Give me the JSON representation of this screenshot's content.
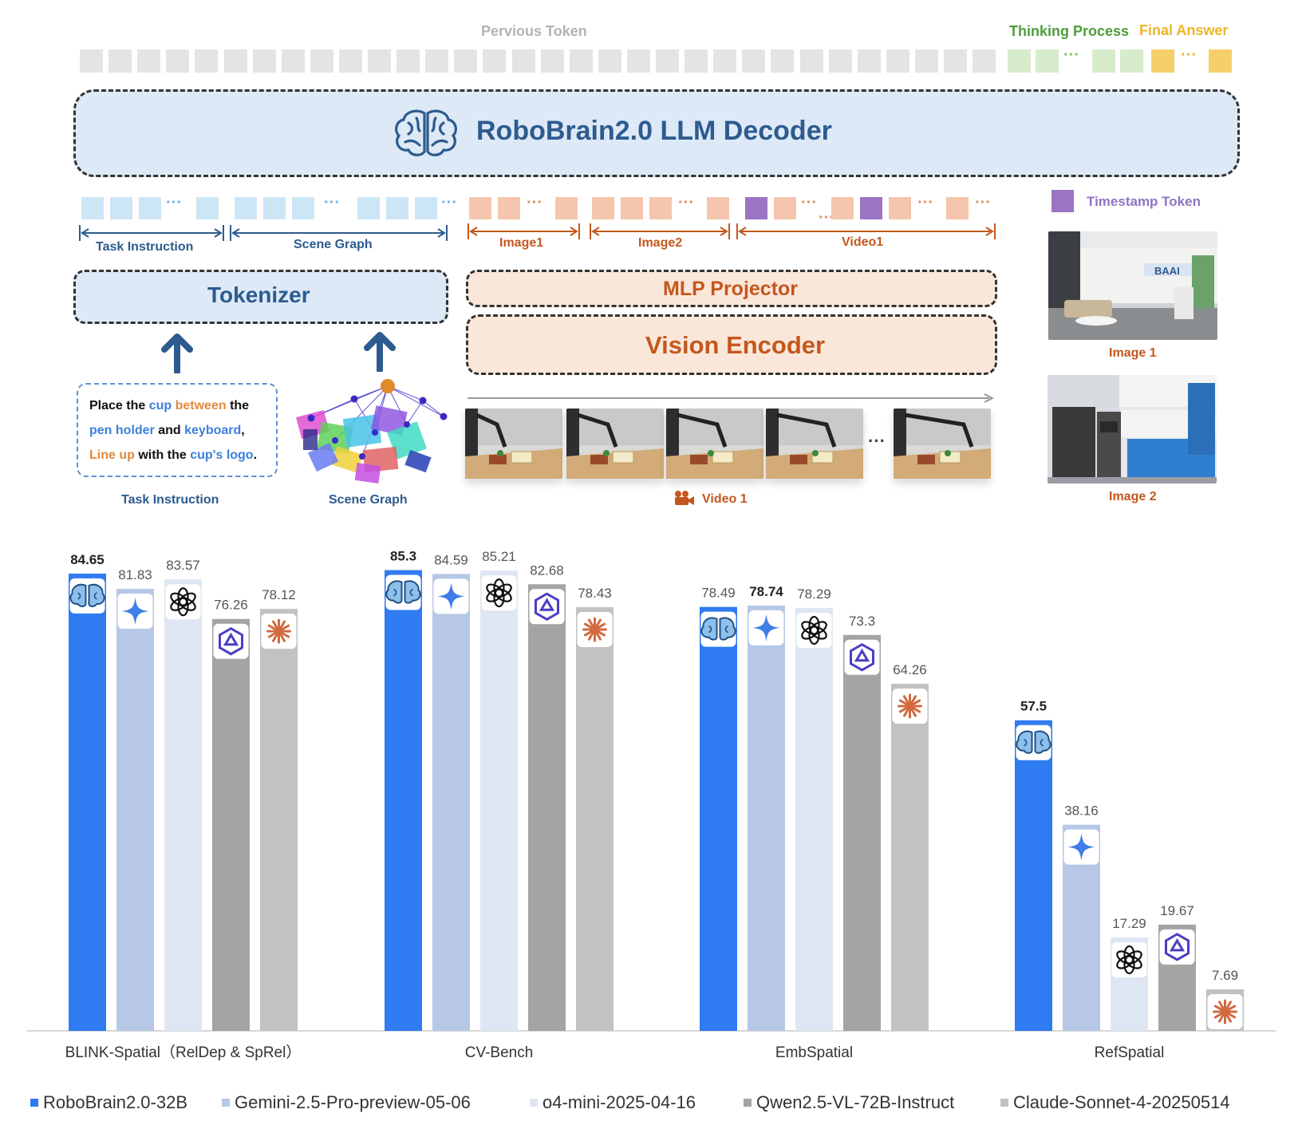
{
  "architecture": {
    "previous_token_label": "Pervious Token",
    "thinking_process_label": "Thinking Process",
    "final_answer_label": "Final Answer",
    "decoder_title": "RoboBrain2.0 LLM Decoder",
    "segments": {
      "task_instruction": "Task Instruction",
      "scene_graph": "Scene Graph",
      "image1": "Image1",
      "image2": "Image2",
      "video1": "Video1"
    },
    "timestamp_token_label": "Timestamp Token",
    "tokenizer_label": "Tokenizer",
    "mlp_projector_label": "MLP Projector",
    "vision_encoder_label": "Vision Encoder",
    "instruction_text": {
      "line1": [
        {
          "text": "Place the ",
          "color": "#111111"
        },
        {
          "text": "cup",
          "color": "#3d7fd9"
        },
        {
          "text": " between",
          "color": "#e08a3c"
        },
        {
          "text": " the",
          "color": "#111111"
        }
      ],
      "line2": [
        {
          "text": "pen holder",
          "color": "#3d7fd9"
        },
        {
          "text": " and ",
          "color": "#111111"
        },
        {
          "text": "keyboard",
          "color": "#3d7fd9"
        },
        {
          "text": ",",
          "color": "#111111"
        }
      ],
      "line3": [
        {
          "text": "Line up",
          "color": "#e08a3c"
        },
        {
          "text": " with the ",
          "color": "#111111"
        },
        {
          "text": "cup's logo",
          "color": "#3d7fd9"
        },
        {
          "text": ".",
          "color": "#111111"
        }
      ]
    },
    "captions": {
      "task_instruction": "Task Instruction",
      "scene_graph": "Scene Graph",
      "video": "Video 1",
      "image1": "Image 1",
      "image2": "Image 2"
    },
    "photo_text": "BAAI",
    "colors": {
      "previous": "#e4e4e4",
      "thinking": "#d6eccb",
      "final": "#f5cf6a",
      "text_token": "#cde6f6",
      "vision_token": "#f5c6ad",
      "timestamp": "#9b74c4",
      "decoder_fill": "#dde9f6",
      "vision_fill": "#fbe7da",
      "blue_text": "#2d5b8f",
      "orange_text": "#c4571e"
    }
  },
  "chart_data": {
    "type": "bar",
    "categories": [
      "BLINK-Spatial（RelDep & SpRel）",
      "CV-Bench",
      "EmbSpatial",
      "RefSpatial"
    ],
    "series": [
      {
        "name": "RoboBrain2.0-32B",
        "values": [
          84.65,
          85.3,
          78.49,
          57.5
        ],
        "color": "#2f7bf2",
        "icon": "brain-icon"
      },
      {
        "name": "Gemini-2.5-Pro-preview-05-06",
        "values": [
          81.83,
          84.59,
          78.74,
          38.16
        ],
        "color": "#b7c8e6",
        "icon": "gemini-sparkle-icon"
      },
      {
        "name": "o4-mini-2025-04-16",
        "values": [
          83.57,
          85.21,
          78.29,
          17.29
        ],
        "color": "#dfe6f3",
        "icon": "openai-icon"
      },
      {
        "name": "Qwen2.5-VL-72B-Instruct",
        "values": [
          76.26,
          82.68,
          73.3,
          19.67
        ],
        "color": "#a4a4a4",
        "icon": "qwen-icon"
      },
      {
        "name": "Claude-Sonnet-4-20250514",
        "values": [
          78.12,
          78.43,
          64.26,
          7.69
        ],
        "color": "#c2c2c2",
        "icon": "claude-icon"
      }
    ],
    "value_labels": [
      [
        "84.65",
        "85.3",
        "78.49",
        "57.5"
      ],
      [
        "81.83",
        "84.59",
        "78.74",
        "38.16"
      ],
      [
        "83.57",
        "85.21",
        "78.29",
        "17.29"
      ],
      [
        "76.26",
        "82.68",
        "73.3",
        "19.67"
      ],
      [
        "78.12",
        "78.43",
        "64.26",
        "7.69"
      ]
    ],
    "bold_labels": [
      [
        true,
        true,
        false,
        true
      ],
      [
        false,
        false,
        true,
        false
      ],
      [
        false,
        false,
        false,
        false
      ],
      [
        false,
        false,
        false,
        false
      ],
      [
        false,
        false,
        false,
        false
      ]
    ],
    "legend_position": "bottom",
    "grid": false
  }
}
